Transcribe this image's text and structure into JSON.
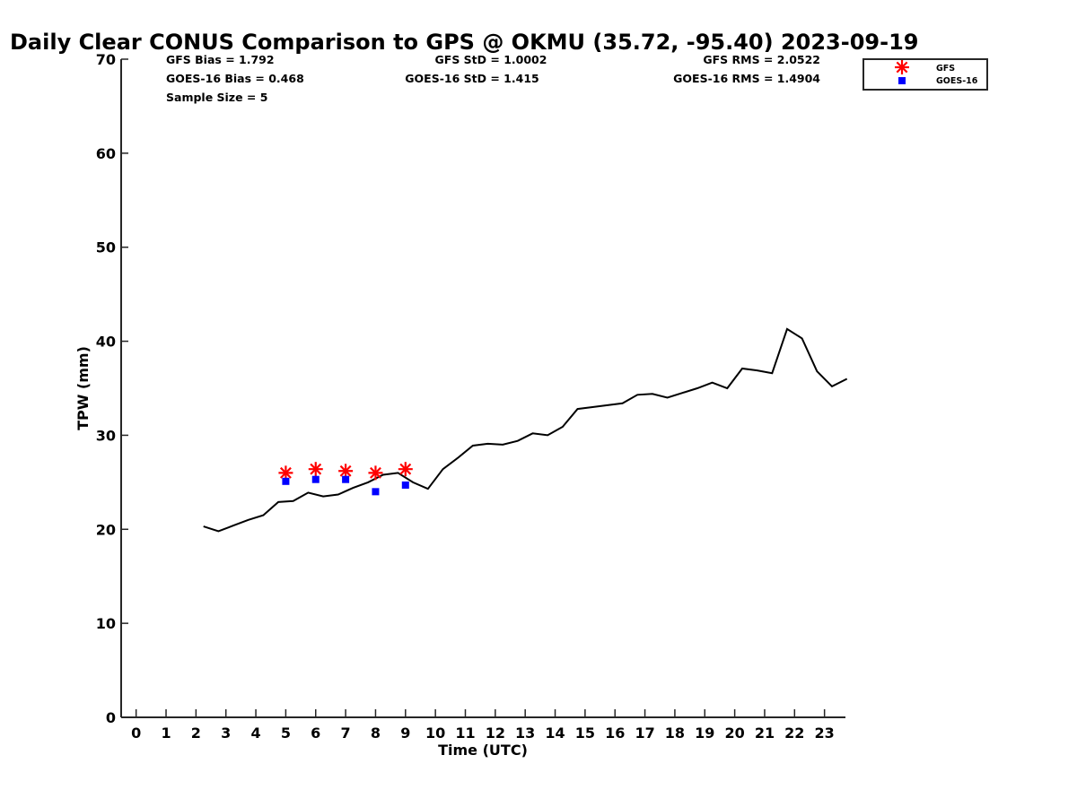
{
  "chart_data": {
    "type": "line",
    "title": "Daily Clear CONUS Comparison to GPS @ OKMU (35.72, -95.40) 2023-09-19",
    "xlabel": "Time (UTC)",
    "ylabel": "TPW (mm)",
    "xlim": [
      -0.5,
      23.7
    ],
    "ylim": [
      0,
      70
    ],
    "x_ticks": [
      0,
      1,
      2,
      3,
      4,
      5,
      6,
      7,
      8,
      9,
      10,
      11,
      12,
      13,
      14,
      15,
      16,
      17,
      18,
      19,
      20,
      21,
      22,
      23
    ],
    "y_ticks": [
      0,
      10,
      20,
      30,
      40,
      50,
      60,
      70
    ],
    "grid": false,
    "legend_position": "top-right",
    "series": [
      {
        "kind": "line",
        "color": "#000000",
        "x": [
          2.25,
          2.75,
          3.25,
          3.75,
          4.25,
          4.75,
          5.25,
          5.75,
          6.25,
          6.75,
          7.25,
          7.75,
          8.25,
          8.75,
          9.25,
          9.75,
          10.25,
          10.75,
          11.25,
          11.75,
          12.25,
          12.75,
          13.25,
          13.75,
          14.25,
          14.75,
          15.25,
          15.75,
          16.25,
          16.75,
          17.25,
          17.75,
          18.25,
          18.75,
          19.25,
          19.75,
          20.25,
          20.75,
          21.25,
          21.75,
          22.25,
          22.75,
          23.25,
          23.75
        ],
        "y": [
          20.3,
          19.8,
          20.4,
          21.0,
          21.5,
          22.9,
          23.0,
          23.9,
          23.5,
          23.7,
          24.4,
          25.0,
          25.8,
          26.0,
          25.0,
          24.3,
          26.4,
          27.6,
          28.9,
          29.1,
          29.0,
          29.4,
          30.2,
          30.0,
          30.9,
          32.8,
          33.0,
          33.2,
          33.4,
          34.3,
          34.4,
          34.0,
          34.5,
          35.0,
          35.6,
          35.0,
          37.1,
          36.9,
          36.6,
          41.3,
          40.3,
          36.8,
          35.2,
          36.0
        ]
      },
      {
        "name": "GFS",
        "kind": "marker",
        "marker": "asterisk",
        "color": "#ff0000",
        "x": [
          5,
          6,
          7,
          8,
          9
        ],
        "y": [
          26.0,
          26.4,
          26.2,
          26.0,
          26.4
        ]
      },
      {
        "name": "GOES-16",
        "kind": "marker",
        "marker": "square",
        "color": "#0000ff",
        "x": [
          5,
          6,
          7,
          8,
          9
        ],
        "y": [
          25.1,
          25.3,
          25.3,
          24.0,
          24.7
        ]
      }
    ],
    "stats": {
      "gfs_bias": "GFS Bias = 1.792",
      "gfs_std": "GFS StD = 1.0002",
      "gfs_rms": "GFS RMS = 2.0522",
      "goes_bias": "GOES-16 Bias = 0.468",
      "goes_std": "GOES-16 StD = 1.415",
      "goes_rms": "GOES-16 RMS = 1.4904",
      "sample_size": "Sample Size = 5"
    },
    "legend": [
      "GFS",
      "GOES-16"
    ]
  }
}
